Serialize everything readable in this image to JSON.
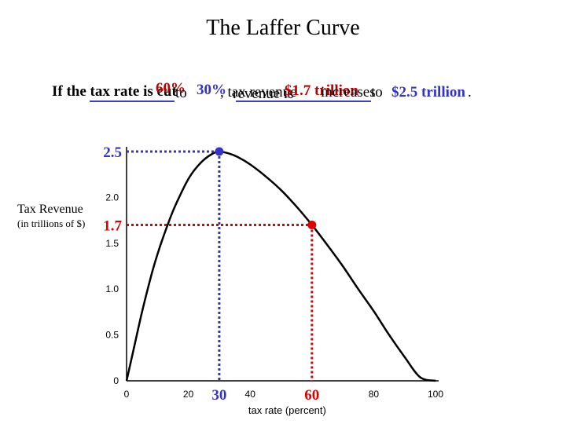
{
  "title": "The Laffer Curve",
  "caption": {
    "part1": "If the tax rate is cut",
    "rate_from": "60%",
    "to": " to ",
    "rate_to": "30%",
    "part2": ", tax revenue",
    "overlap_a": "revenue is",
    "overlap_b": "$1.7 trillion",
    "increases": " increases",
    "to2": " to ",
    "rev_to": "$2.5 trillion",
    "period": "."
  },
  "colors": {
    "curve": "#000000",
    "high_tax": "#dd0000",
    "low_tax": "#3333cc",
    "axis": "#000000"
  },
  "chart_data": {
    "type": "line",
    "title": "The Laffer Curve",
    "xlabel": "tax rate  (percent)",
    "ylabel": "Tax Revenue",
    "ylabel_unit": "(in trillions of $)",
    "xlim": [
      0,
      100
    ],
    "ylim": [
      0,
      2.5
    ],
    "x_ticks": [
      0,
      20,
      40,
      80,
      100
    ],
    "x_tick_labels": [
      "0",
      "20",
      "40",
      "80",
      "100"
    ],
    "y_ticks": [
      0,
      0.5,
      1.0,
      1.5,
      2.0
    ],
    "y_tick_labels": [
      "0",
      "0.5",
      "1.0",
      "1.5",
      "2.0"
    ],
    "series": [
      {
        "x": [
          0,
          2,
          5,
          8,
          10,
          12,
          15,
          18,
          20,
          22,
          25,
          28,
          30,
          33,
          36,
          40,
          45,
          50,
          55,
          60,
          65,
          70,
          75,
          80,
          85,
          90,
          95,
          100
        ],
        "y": [
          0,
          0.3,
          0.75,
          1.15,
          1.38,
          1.58,
          1.85,
          2.07,
          2.2,
          2.3,
          2.41,
          2.48,
          2.5,
          2.48,
          2.44,
          2.36,
          2.23,
          2.08,
          1.9,
          1.7,
          1.48,
          1.25,
          1.0,
          0.76,
          0.5,
          0.26,
          0.04,
          0
        ]
      }
    ],
    "highlights": [
      {
        "x": 30,
        "y": 2.5,
        "x_label": "30",
        "y_label": "2.5",
        "color": "#3333cc"
      },
      {
        "x": 60,
        "y": 1.7,
        "x_label": "60",
        "y_label": "1.7",
        "color": "#dd0000"
      }
    ]
  }
}
